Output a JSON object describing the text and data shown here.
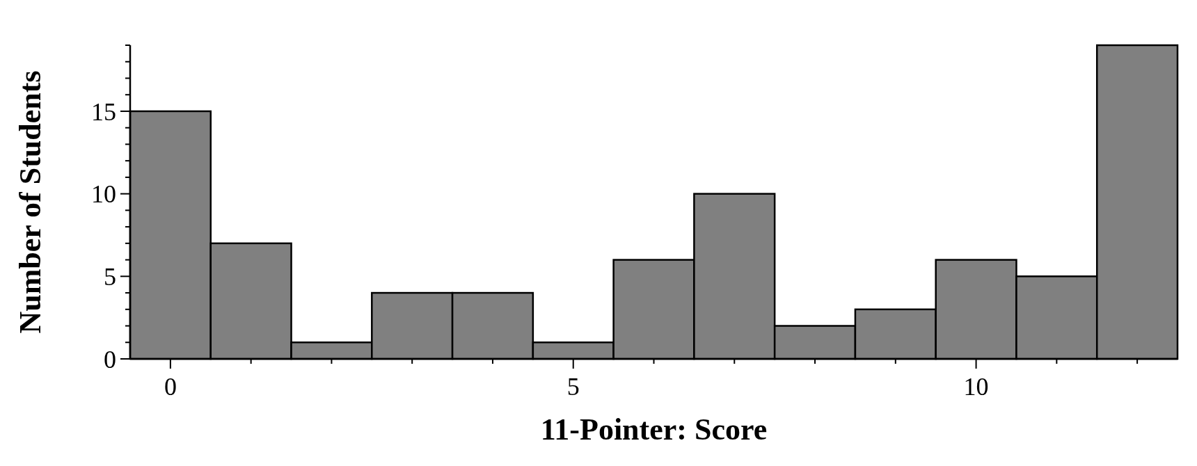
{
  "chart_data": {
    "type": "histogram",
    "xlabel": "11-Pointer: Score",
    "ylabel": "Number of Students",
    "bins": [
      -0.5,
      0.5,
      1.5,
      2.5,
      3.5,
      4.5,
      5.5,
      6.5,
      7.5,
      8.5,
      9.5,
      10.5,
      11.5,
      12.5
    ],
    "values": [
      15,
      7,
      1,
      4,
      4,
      1,
      6,
      10,
      2,
      3,
      6,
      5,
      19
    ],
    "color": "#808080",
    "xlim": [
      -0.5,
      12.5
    ],
    "xticks": [
      0,
      {
        "value": 1,
        "label": null
      },
      {
        "value": 2,
        "label": null
      },
      {
        "value": 3,
        "label": null
      },
      {
        "value": 4,
        "label": null
      },
      5,
      {
        "value": 6,
        "label": null
      },
      {
        "value": 7,
        "label": null
      },
      {
        "value": 8,
        "label": null
      },
      {
        "value": 9,
        "label": null
      },
      10,
      {
        "value": 11,
        "label": null
      },
      {
        "value": 12,
        "label": null
      }
    ],
    "ylim": [
      0,
      19
    ],
    "yticks": [
      0,
      {
        "value": 1,
        "label": null
      },
      {
        "value": 2,
        "label": null
      },
      {
        "value": 3,
        "label": null
      },
      {
        "value": 4,
        "label": null
      },
      5,
      {
        "value": 6,
        "label": null
      },
      {
        "value": 7,
        "label": null
      },
      {
        "value": 8,
        "label": null
      },
      {
        "value": 9,
        "label": null
      },
      10,
      {
        "value": 11,
        "label": null
      },
      {
        "value": 12,
        "label": null
      },
      {
        "value": 13,
        "label": null
      },
      {
        "value": 14,
        "label": null
      },
      15,
      {
        "value": 16,
        "label": null
      },
      {
        "value": 17,
        "label": null
      },
      {
        "value": 18,
        "label": null
      },
      {
        "value": 19,
        "label": null
      }
    ],
    "grid": false
  }
}
